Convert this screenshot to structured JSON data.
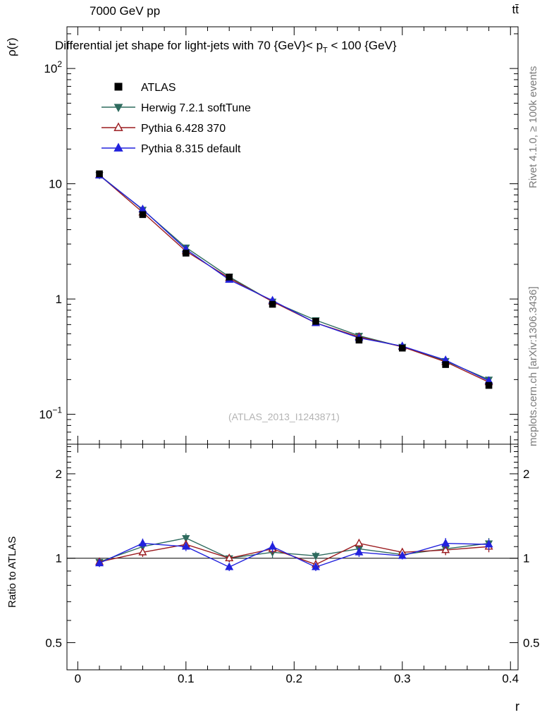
{
  "header": {
    "left": "7000 GeV pp",
    "right": "tt̄"
  },
  "title": {
    "pre": "Differential jet shape for light-jets with 70 {GeV}< p",
    "sub": "T",
    "post": " < 100 {GeV}"
  },
  "axes": {
    "y_label": "ρ(r)",
    "ratio_y_label": "Ratio to ATLAS",
    "x_label": "r"
  },
  "side_notes": {
    "top_right": "Rivet 4.1.0, ≥ 100k events",
    "bottom_right": "mcplots.cern.ch [arXiv:1306.3436]"
  },
  "watermark": "(ATLAS_2013_I1243871)",
  "chart_data": {
    "type": "line",
    "title": "Differential jet shape for light-jets with 70 {GeV}< p_T < 100 {GeV}",
    "xlabel": "r",
    "ylabel": "ρ(r)",
    "ratio_label": "Ratio to ATLAS",
    "x": [
      0.02,
      0.06,
      0.1,
      0.14,
      0.18,
      0.22,
      0.26,
      0.3,
      0.34,
      0.38
    ],
    "x_range": [
      -0.01,
      0.407
    ],
    "y_range": [
      0.055,
      230
    ],
    "ratio_range": [
      0.4,
      2.55
    ],
    "y_scale": "log",
    "ratio_scale": "log",
    "x_ticks": {
      "major": [
        0,
        0.1,
        0.2,
        0.3,
        0.4
      ],
      "minor_step": 0.02,
      "labels": [
        "0",
        "0.1",
        "0.2",
        "0.3",
        "0.4"
      ]
    },
    "y_ticks": {
      "major": [
        0.1,
        1,
        10,
        100
      ],
      "labels": [
        {
          "v": 100,
          "base": "10",
          "exp": "2"
        },
        {
          "v": 10,
          "base": "10",
          "exp": ""
        },
        {
          "v": 1,
          "base": "1",
          "exp": ""
        },
        {
          "v": 0.1,
          "base": "10",
          "exp": "−1"
        }
      ]
    },
    "ratio_ticks": {
      "major": [
        0.5,
        1,
        2
      ],
      "labels": [
        "0.5",
        "1",
        "2"
      ]
    },
    "series": [
      {
        "name": "ATLAS",
        "color": "#000000",
        "marker": "square-filled",
        "line": false,
        "values": [
          12.2,
          5.4,
          2.5,
          1.55,
          0.9,
          0.64,
          0.44,
          0.375,
          0.27,
          0.178
        ],
        "errors": [
          0.5,
          0.22,
          0.1,
          0.06,
          0.04,
          0.025,
          0.018,
          0.014,
          0.011,
          0.009
        ]
      },
      {
        "name": "Herwig 7.2.1 softTune",
        "color": "#2e6b5e",
        "marker": "triangle-down-filled",
        "line": true,
        "values": [
          11.9,
          5.95,
          2.8,
          1.56,
          0.95,
          0.655,
          0.48,
          0.385,
          0.29,
          0.2
        ],
        "errors": [
          0.3,
          0.15,
          0.08,
          0.05,
          0.035,
          0.025,
          0.02,
          0.015,
          0.013,
          0.01
        ],
        "ratio": [
          0.97,
          1.1,
          1.18,
          1.0,
          1.05,
          1.02,
          1.08,
          1.03,
          1.08,
          1.13
        ],
        "ratio_errors": [
          0.035,
          0.04,
          0.045,
          0.03,
          0.05,
          0.035,
          0.045,
          0.035,
          0.05,
          0.05
        ]
      },
      {
        "name": "Pythia 6.428 370",
        "color": "#9b1b1f",
        "marker": "triangle-up-open",
        "line": true,
        "values": [
          11.9,
          5.65,
          2.6,
          1.52,
          0.95,
          0.62,
          0.47,
          0.385,
          0.285,
          0.19
        ],
        "errors": [
          0.3,
          0.15,
          0.08,
          0.05,
          0.035,
          0.025,
          0.02,
          0.015,
          0.013,
          0.01
        ],
        "ratio": [
          0.97,
          1.05,
          1.12,
          1.0,
          1.08,
          0.95,
          1.13,
          1.05,
          1.07,
          1.1
        ],
        "ratio_errors": [
          0.03,
          0.04,
          0.04,
          0.03,
          0.045,
          0.03,
          0.04,
          0.03,
          0.045,
          0.05
        ]
      },
      {
        "name": "Pythia 8.315 default",
        "color": "#2222dd",
        "marker": "triangle-up-filled",
        "line": true,
        "values": [
          11.8,
          6.0,
          2.7,
          1.47,
          0.97,
          0.62,
          0.46,
          0.39,
          0.295,
          0.195
        ],
        "errors": [
          0.3,
          0.15,
          0.08,
          0.05,
          0.035,
          0.025,
          0.02,
          0.015,
          0.013,
          0.01
        ],
        "ratio": [
          0.96,
          1.13,
          1.1,
          0.93,
          1.1,
          0.93,
          1.05,
          1.02,
          1.13,
          1.12
        ],
        "ratio_errors": [
          0.03,
          0.045,
          0.04,
          0.03,
          0.05,
          0.03,
          0.04,
          0.03,
          0.05,
          0.05
        ]
      }
    ]
  }
}
